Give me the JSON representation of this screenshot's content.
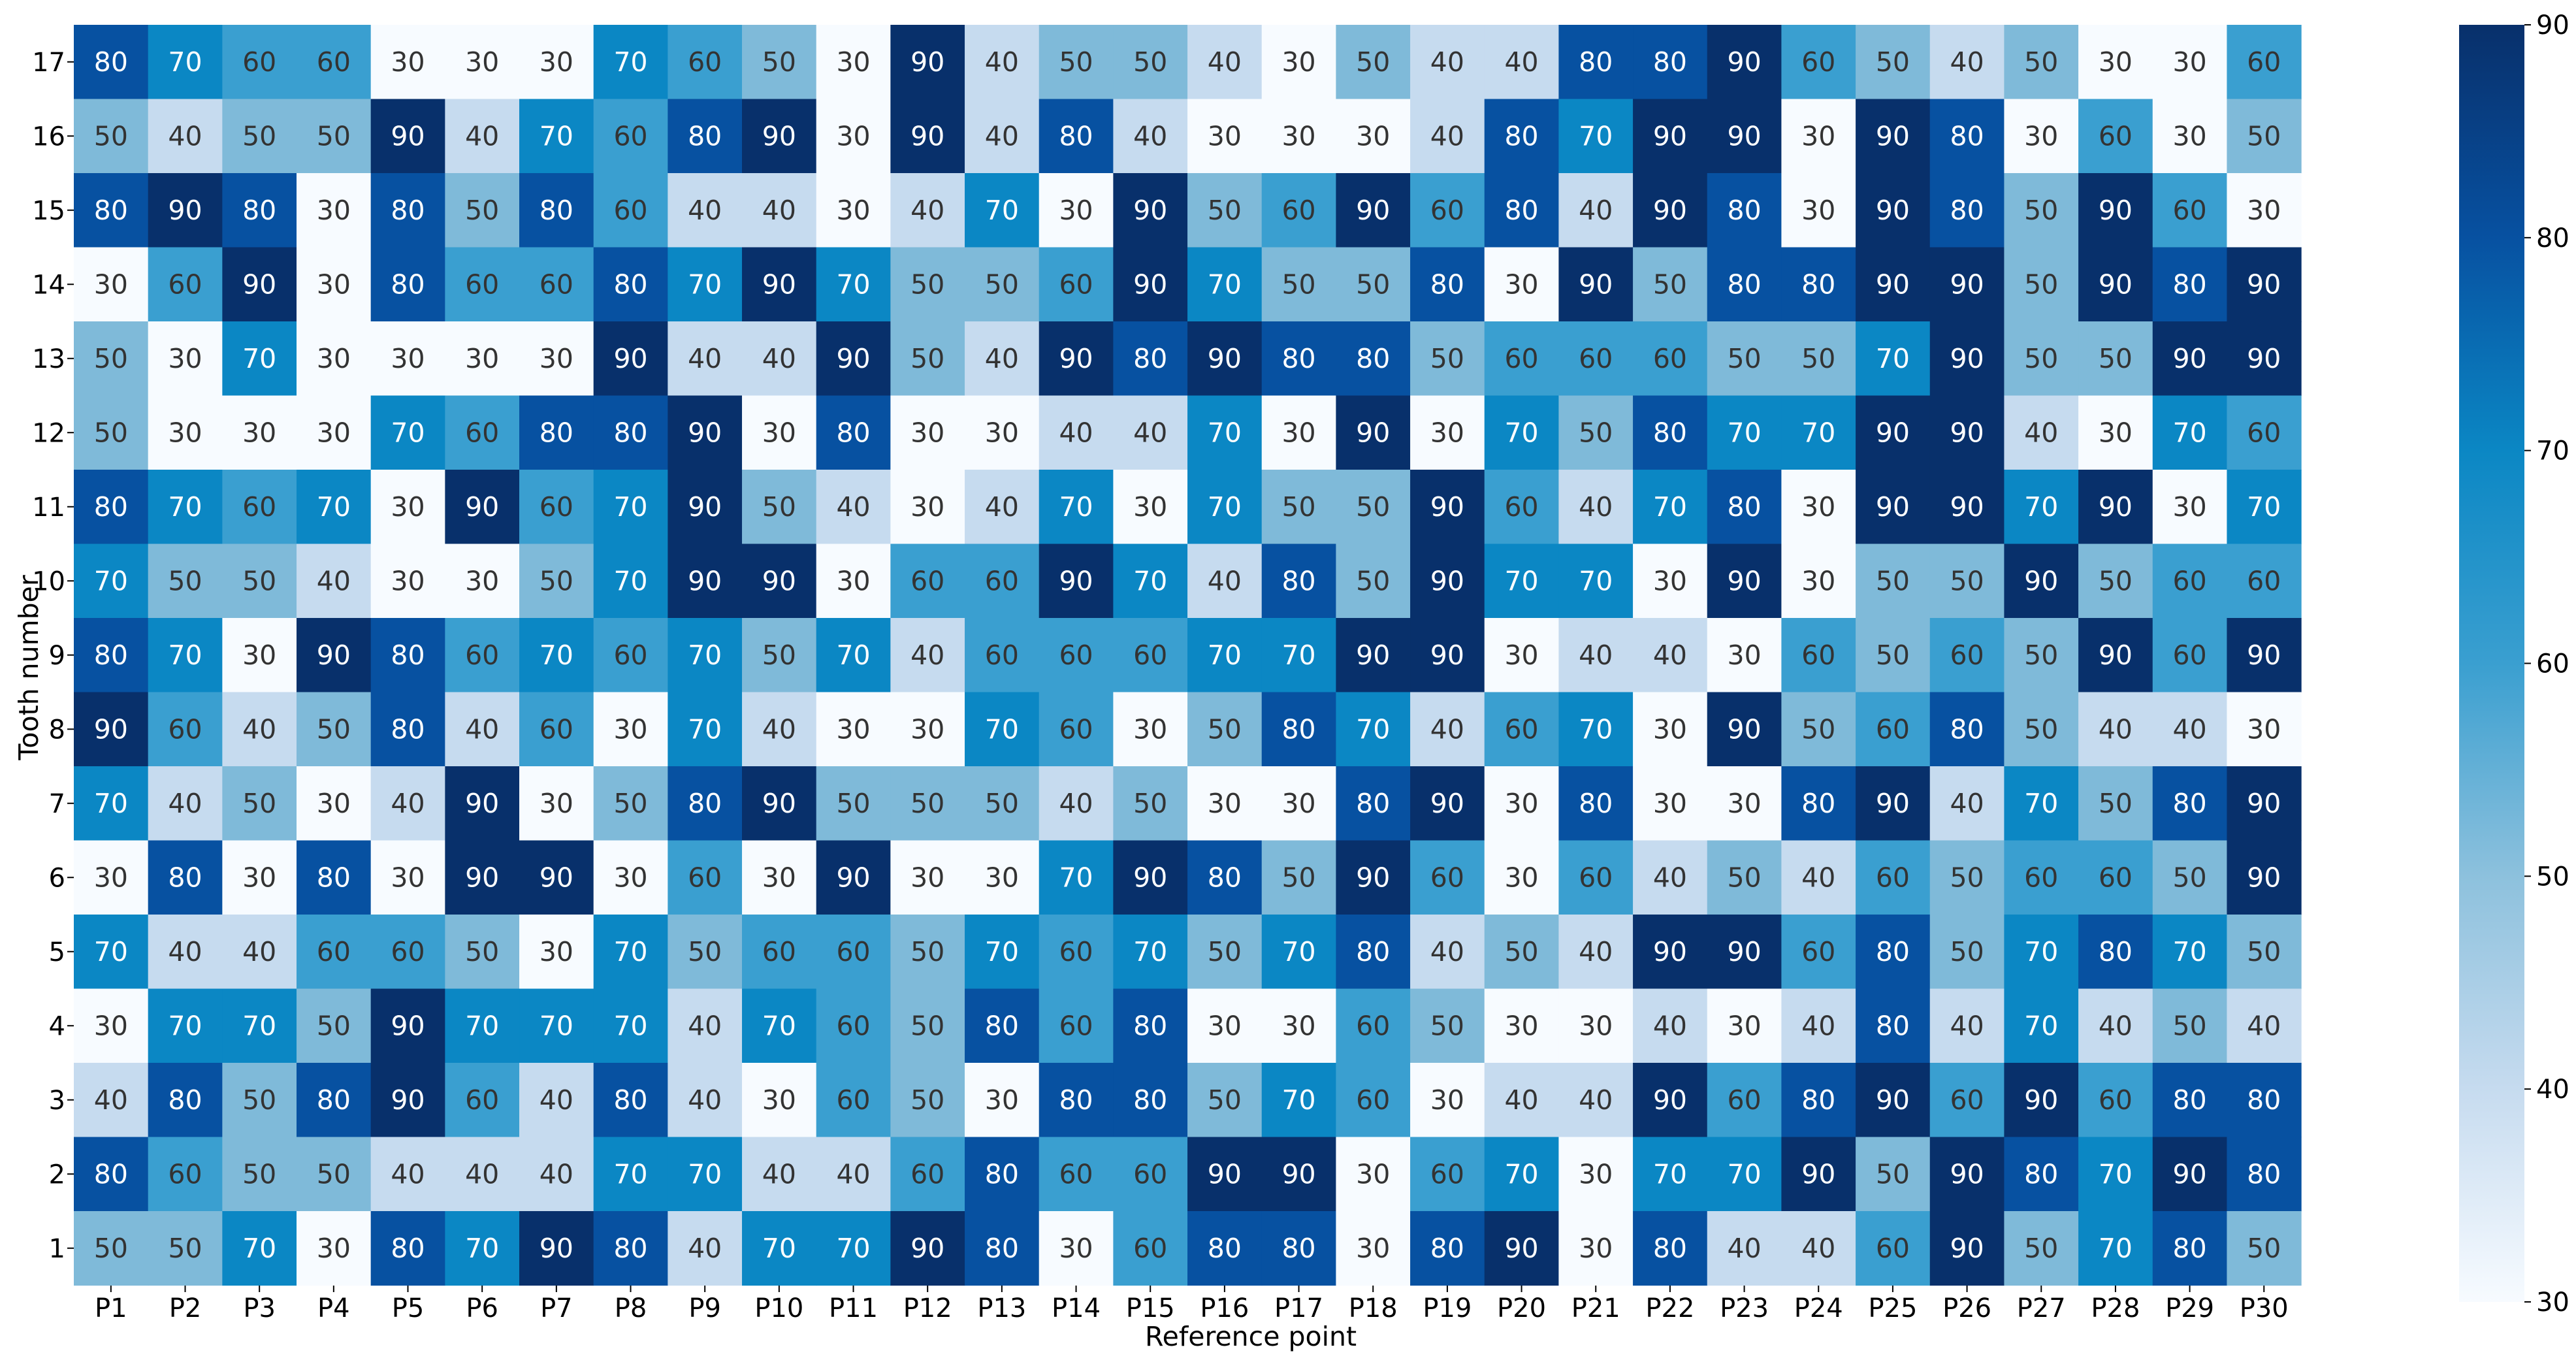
{
  "chart_data": {
    "type": "heatmap",
    "title": "",
    "xlabel": "Reference point",
    "ylabel": "Tooth number",
    "colormap": "Blues",
    "vmin": 30,
    "vmax": 90,
    "colorbar_ticks": [
      30,
      40,
      50,
      60,
      70,
      80,
      90
    ],
    "x_categories": [
      "P1",
      "P2",
      "P3",
      "P4",
      "P5",
      "P6",
      "P7",
      "P8",
      "P9",
      "P10",
      "P11",
      "P12",
      "P13",
      "P14",
      "P15",
      "P16",
      "P17",
      "P18",
      "P19",
      "P20",
      "P21",
      "P22",
      "P23",
      "P24",
      "P25",
      "P26",
      "P27",
      "P28",
      "P29",
      "P30"
    ],
    "y_categories": [
      "17",
      "16",
      "15",
      "14",
      "13",
      "12",
      "11",
      "10",
      "9",
      "8",
      "7",
      "6",
      "5",
      "4",
      "3",
      "2",
      "1"
    ],
    "values": [
      [
        80,
        70,
        60,
        60,
        30,
        30,
        30,
        70,
        60,
        50,
        30,
        90,
        40,
        50,
        50,
        40,
        30,
        50,
        40,
        40,
        80,
        80,
        90,
        60,
        50,
        40,
        50,
        30,
        30,
        60
      ],
      [
        50,
        40,
        50,
        50,
        90,
        40,
        70,
        60,
        80,
        90,
        30,
        90,
        40,
        80,
        40,
        30,
        30,
        30,
        40,
        80,
        70,
        90,
        90,
        30,
        90,
        80,
        30,
        60,
        30,
        50
      ],
      [
        80,
        90,
        80,
        30,
        80,
        50,
        80,
        60,
        40,
        40,
        30,
        40,
        70,
        30,
        90,
        50,
        60,
        90,
        60,
        80,
        40,
        90,
        80,
        30,
        90,
        80,
        50,
        90,
        60,
        30
      ],
      [
        30,
        60,
        90,
        30,
        80,
        60,
        60,
        80,
        70,
        90,
        70,
        50,
        50,
        60,
        90,
        70,
        50,
        50,
        80,
        30,
        90,
        50,
        80,
        80,
        90,
        90,
        50,
        90,
        80,
        90
      ],
      [
        50,
        30,
        70,
        30,
        30,
        30,
        30,
        90,
        40,
        40,
        90,
        50,
        40,
        90,
        80,
        90,
        80,
        80,
        50,
        60,
        60,
        60,
        50,
        50,
        70,
        90,
        50,
        50,
        90,
        90
      ],
      [
        50,
        30,
        30,
        30,
        70,
        60,
        80,
        80,
        90,
        30,
        80,
        30,
        30,
        40,
        40,
        70,
        30,
        90,
        30,
        70,
        50,
        80,
        70,
        70,
        90,
        90,
        40,
        30,
        70,
        60
      ],
      [
        80,
        70,
        60,
        70,
        30,
        90,
        60,
        70,
        90,
        50,
        40,
        30,
        40,
        70,
        30,
        70,
        50,
        50,
        90,
        60,
        40,
        70,
        80,
        30,
        90,
        90,
        70,
        90,
        30,
        70
      ],
      [
        70,
        50,
        50,
        40,
        30,
        30,
        50,
        70,
        90,
        90,
        30,
        60,
        60,
        90,
        70,
        40,
        80,
        50,
        90,
        70,
        70,
        30,
        90,
        30,
        50,
        50,
        90,
        50,
        60,
        60
      ],
      [
        80,
        70,
        30,
        90,
        80,
        60,
        70,
        60,
        70,
        50,
        70,
        40,
        60,
        60,
        60,
        70,
        70,
        90,
        90,
        30,
        40,
        40,
        30,
        60,
        50,
        60,
        50,
        90,
        60,
        90
      ],
      [
        90,
        60,
        40,
        50,
        80,
        40,
        60,
        30,
        70,
        40,
        30,
        30,
        70,
        60,
        30,
        50,
        80,
        70,
        40,
        60,
        70,
        30,
        90,
        50,
        60,
        80,
        50,
        40,
        40,
        30
      ],
      [
        70,
        40,
        50,
        30,
        40,
        90,
        30,
        50,
        80,
        90,
        50,
        50,
        50,
        40,
        50,
        30,
        30,
        80,
        90,
        30,
        80,
        30,
        30,
        80,
        90,
        40,
        70,
        50,
        80,
        90
      ],
      [
        30,
        80,
        30,
        80,
        30,
        90,
        90,
        30,
        60,
        30,
        90,
        30,
        30,
        70,
        90,
        80,
        50,
        90,
        60,
        30,
        60,
        40,
        50,
        40,
        60,
        50,
        60,
        60,
        50,
        90
      ],
      [
        70,
        40,
        40,
        60,
        60,
        50,
        30,
        70,
        50,
        60,
        60,
        50,
        70,
        60,
        70,
        50,
        70,
        80,
        40,
        50,
        40,
        90,
        90,
        60,
        80,
        50,
        70,
        80,
        70,
        50
      ],
      [
        30,
        70,
        70,
        50,
        90,
        70,
        70,
        70,
        40,
        70,
        60,
        50,
        80,
        60,
        80,
        30,
        30,
        60,
        50,
        30,
        30,
        40,
        30,
        40,
        80,
        40,
        70,
        40,
        50,
        40
      ],
      [
        40,
        80,
        50,
        80,
        90,
        60,
        40,
        80,
        40,
        30,
        60,
        50,
        30,
        80,
        80,
        50,
        70,
        60,
        30,
        40,
        40,
        90,
        60,
        80,
        90,
        60,
        90,
        60,
        80,
        80
      ],
      [
        80,
        60,
        50,
        50,
        40,
        40,
        40,
        70,
        70,
        40,
        40,
        60,
        80,
        60,
        60,
        90,
        90,
        30,
        60,
        70,
        30,
        70,
        70,
        90,
        50,
        90,
        80,
        70,
        90,
        80
      ],
      [
        50,
        50,
        70,
        30,
        80,
        70,
        90,
        80,
        40,
        70,
        70,
        90,
        80,
        30,
        60,
        80,
        80,
        30,
        80,
        90,
        30,
        80,
        40,
        40,
        60,
        90,
        50,
        70,
        80,
        50
      ]
    ],
    "colors": {
      "30": "#f7fbff",
      "40": "#c6dbef",
      "50": "#7fbad9",
      "60": "#3a9fd0",
      "70": "#0b87c4",
      "80": "#0751a1",
      "90": "#08306b"
    },
    "text_colors": {
      "dark": "#ffffff",
      "light": "#333333"
    }
  }
}
